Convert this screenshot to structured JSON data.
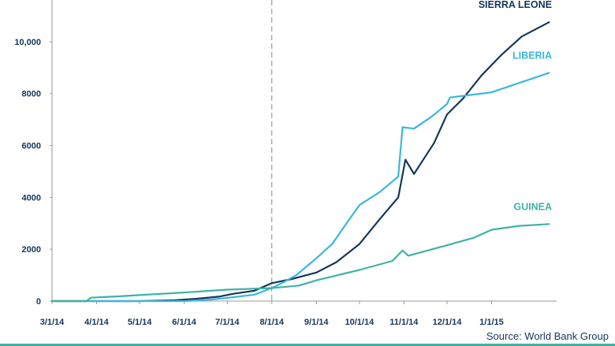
{
  "chart_data": {
    "type": "line",
    "title": "",
    "xlabel": "",
    "ylabel": "",
    "ylim": [
      0,
      11000
    ],
    "yticks": [
      0,
      2000,
      4000,
      6000,
      8000,
      10000
    ],
    "ytick_labels": [
      "0",
      "2000",
      "4000",
      "6000",
      "8000",
      "10,000"
    ],
    "xlim": [
      "2014-03-01",
      "2015-02-12"
    ],
    "xticks": [
      "2014-03-01",
      "2014-04-01",
      "2014-05-01",
      "2014-06-01",
      "2014-07-01",
      "2014-08-01",
      "2014-09-01",
      "2014-10-01",
      "2014-11-01",
      "2014-12-01",
      "2015-01-01"
    ],
    "xtick_labels": [
      "3/1/14",
      "4/1/14",
      "5/1/14",
      "6/1/14",
      "7/1/14",
      "8/1/14",
      "9/1/14",
      "10/1/14",
      "11/1/14",
      "12/1/14",
      "1/1/15"
    ],
    "grid": false,
    "reference_line_date": "2014-08-01",
    "source": "Source: World Bank Group",
    "series": [
      {
        "name": "SIERRA LEONE",
        "color": "#14375a",
        "points": [
          [
            "2014-03-01",
            0
          ],
          [
            "2014-05-01",
            0
          ],
          [
            "2014-05-25",
            30
          ],
          [
            "2014-06-10",
            90
          ],
          [
            "2014-06-25",
            170
          ],
          [
            "2014-07-05",
            280
          ],
          [
            "2014-07-20",
            400
          ],
          [
            "2014-08-01",
            690
          ],
          [
            "2014-08-15",
            850
          ],
          [
            "2014-09-01",
            1100
          ],
          [
            "2014-09-15",
            1500
          ],
          [
            "2014-10-01",
            2200
          ],
          [
            "2014-10-15",
            3150
          ],
          [
            "2014-10-28",
            4000
          ],
          [
            "2014-11-02",
            5450
          ],
          [
            "2014-11-08",
            4900
          ],
          [
            "2014-11-22",
            6100
          ],
          [
            "2014-12-01",
            7200
          ],
          [
            "2014-12-12",
            7800
          ],
          [
            "2014-12-25",
            8700
          ],
          [
            "2015-01-08",
            9500
          ],
          [
            "2015-01-22",
            10200
          ],
          [
            "2015-02-10",
            10750
          ]
        ]
      },
      {
        "name": "LIBERIA",
        "color": "#3ab7dd",
        "points": [
          [
            "2014-03-01",
            0
          ],
          [
            "2014-06-01",
            0
          ],
          [
            "2014-06-20",
            60
          ],
          [
            "2014-07-05",
            150
          ],
          [
            "2014-07-20",
            250
          ],
          [
            "2014-08-01",
            500
          ],
          [
            "2014-08-10",
            750
          ],
          [
            "2014-08-18",
            1000
          ],
          [
            "2014-09-01",
            1650
          ],
          [
            "2014-09-12",
            2200
          ],
          [
            "2014-09-22",
            3000
          ],
          [
            "2014-10-01",
            3700
          ],
          [
            "2014-10-15",
            4200
          ],
          [
            "2014-10-28",
            4800
          ],
          [
            "2014-10-31",
            6700
          ],
          [
            "2014-11-08",
            6650
          ],
          [
            "2014-11-20",
            7100
          ],
          [
            "2014-12-01",
            7600
          ],
          [
            "2014-12-03",
            7850
          ],
          [
            "2015-01-01",
            8050
          ],
          [
            "2015-02-10",
            8800
          ]
        ]
      },
      {
        "name": "GUINEA",
        "color": "#3fb3a3",
        "points": [
          [
            "2014-03-01",
            0
          ],
          [
            "2014-03-25",
            0
          ],
          [
            "2014-03-28",
            130
          ],
          [
            "2014-04-15",
            180
          ],
          [
            "2014-05-01",
            230
          ],
          [
            "2014-06-01",
            330
          ],
          [
            "2014-07-01",
            440
          ],
          [
            "2014-08-01",
            500
          ],
          [
            "2014-08-20",
            600
          ],
          [
            "2014-09-01",
            800
          ],
          [
            "2014-10-01",
            1200
          ],
          [
            "2014-10-24",
            1550
          ],
          [
            "2014-10-31",
            1950
          ],
          [
            "2014-11-04",
            1750
          ],
          [
            "2014-12-01",
            2150
          ],
          [
            "2014-12-20",
            2450
          ],
          [
            "2015-01-01",
            2750
          ],
          [
            "2015-01-20",
            2900
          ],
          [
            "2015-02-10",
            2970
          ]
        ]
      }
    ]
  }
}
